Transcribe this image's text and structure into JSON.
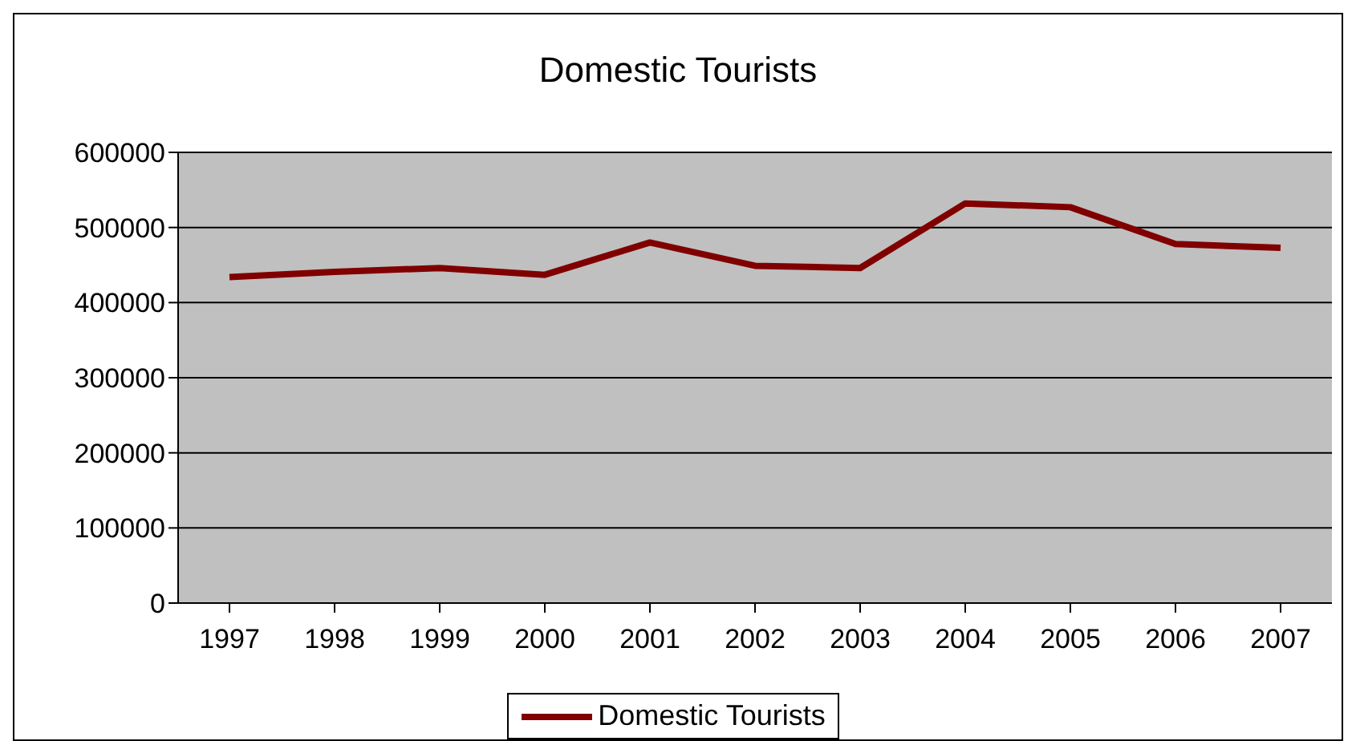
{
  "chart_data": {
    "type": "line",
    "title": "Domestic Tourists",
    "categories": [
      "1997",
      "1998",
      "1999",
      "2000",
      "2001",
      "2002",
      "2003",
      "2004",
      "2005",
      "2006",
      "2007"
    ],
    "series": [
      {
        "name": "Domestic Tourists",
        "color": "#800000",
        "values": [
          434000,
          441000,
          446000,
          437000,
          480000,
          449000,
          446000,
          532000,
          527000,
          478000,
          473000
        ]
      }
    ],
    "ylim": [
      0,
      600000
    ],
    "yticks": [
      0,
      100000,
      200000,
      300000,
      400000,
      500000,
      600000
    ],
    "grid": "y",
    "legend": "bottom",
    "marker": "none",
    "line_style": "solid"
  }
}
